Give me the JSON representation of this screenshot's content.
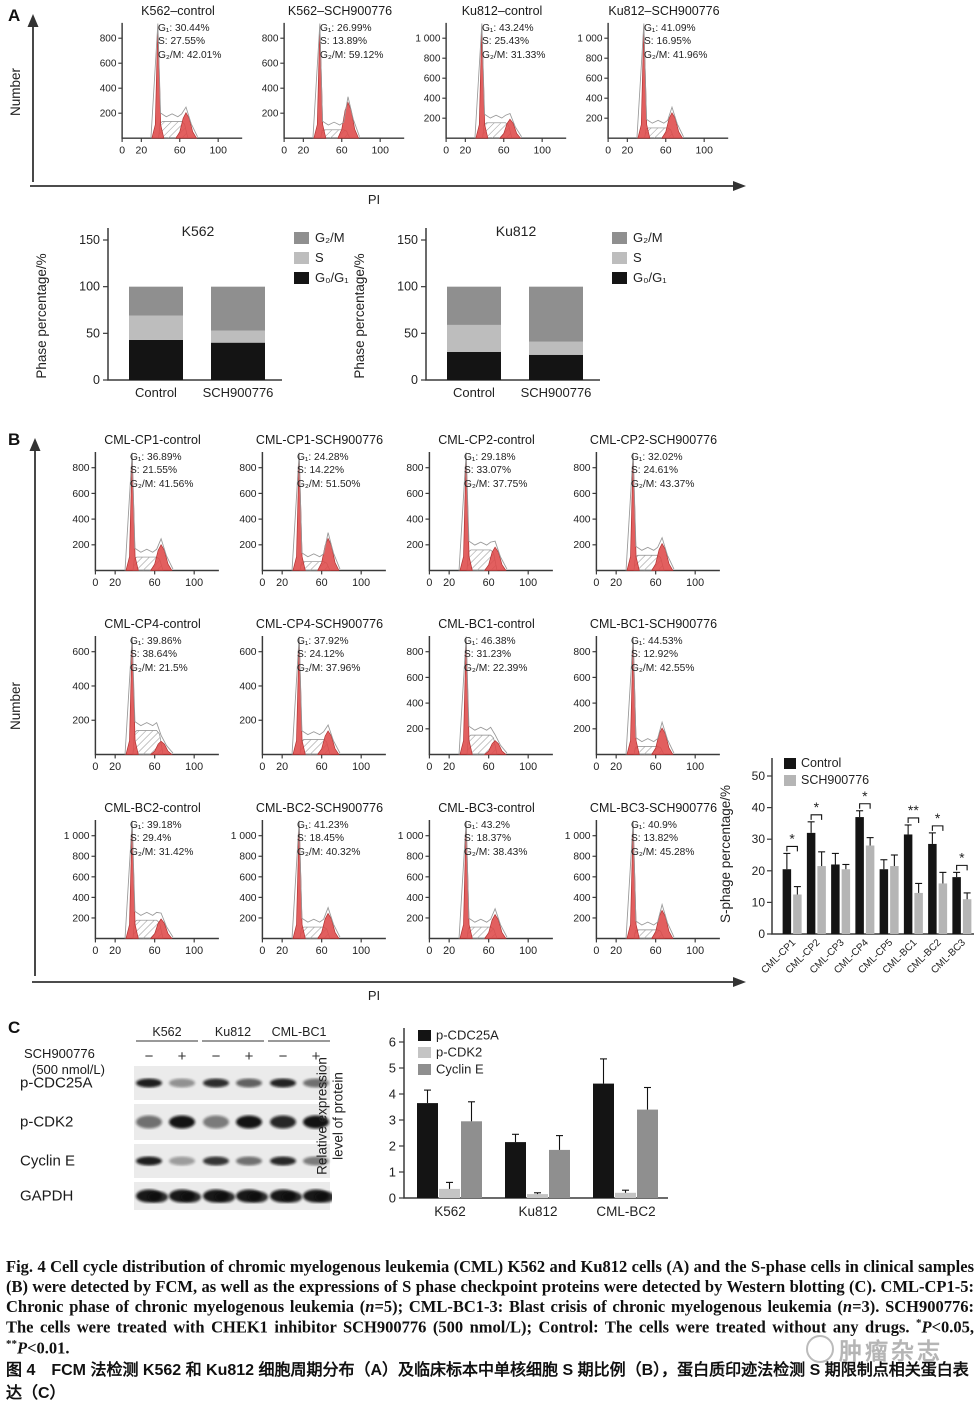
{
  "fcm": {
    "xtick_labels": [
      "0",
      "20",
      "60",
      "100"
    ],
    "xtick_values": [
      0,
      20,
      60,
      100
    ]
  },
  "panelA": {
    "label": "A",
    "ylabel": "Number",
    "xlabel": "PI",
    "histograms": [
      {
        "title": "K562–control",
        "stats": [
          "G₁: 30.44%",
          "S: 27.55%",
          "G₂/M: 42.01%"
        ],
        "v": {
          "g1": 30.44,
          "s": 27.55,
          "g2m": 42.01
        },
        "ymax": 800,
        "yticks": [
          200,
          400,
          600,
          800
        ],
        "ytick_labels": [
          "200",
          "400",
          "600",
          "800"
        ]
      },
      {
        "title": "K562–SCH900776",
        "stats": [
          "G₁: 26.99%",
          "S: 13.89%",
          "G₂/M: 59.12%"
        ],
        "v": {
          "g1": 26.99,
          "s": 13.89,
          "g2m": 59.12
        },
        "ymax": 800,
        "yticks": [
          200,
          400,
          600,
          800
        ],
        "ytick_labels": [
          "200",
          "400",
          "600",
          "800"
        ]
      },
      {
        "title": "Ku812–control",
        "stats": [
          "G₁: 43.24%",
          "S: 25.43%",
          "G₂/M: 31.33%"
        ],
        "v": {
          "g1": 43.24,
          "s": 25.43,
          "g2m": 31.33
        },
        "ymax": 1000,
        "yticks": [
          200,
          400,
          600,
          800,
          1000
        ],
        "ytick_labels": [
          "200",
          "400",
          "600",
          "800",
          "1 000"
        ]
      },
      {
        "title": "Ku812–SCH900776",
        "stats": [
          "G₁: 41.09%",
          "S: 16.95%",
          "G₂/M: 41.96%"
        ],
        "v": {
          "g1": 41.09,
          "s": 16.95,
          "g2m": 41.96
        },
        "ymax": 1000,
        "yticks": [
          200,
          400,
          600,
          800,
          1000
        ],
        "ytick_labels": [
          "200",
          "400",
          "600",
          "800",
          "1 000"
        ]
      }
    ]
  },
  "panelB": {
    "label": "B",
    "ylabel": "Number",
    "xlabel": "PI",
    "rows": [
      [
        {
          "title": "CML-CP1-control",
          "stats": [
            "G₁: 36.89%",
            "S: 21.55%",
            "G₂/M: 41.56%"
          ],
          "v": {
            "g1": 36.89,
            "s": 21.55,
            "g2m": 41.56
          },
          "ymax": 800,
          "yticks": [
            200,
            400,
            600,
            800
          ],
          "ytick_labels": [
            "200",
            "400",
            "600",
            "800"
          ]
        },
        {
          "title": "CML-CP1-SCH900776",
          "stats": [
            "G₁: 24.28%",
            "S: 14.22%",
            "G₂/M: 51.50%"
          ],
          "v": {
            "g1": 24.28,
            "s": 14.22,
            "g2m": 51.5
          },
          "ymax": 800,
          "yticks": [
            200,
            400,
            600,
            800
          ],
          "ytick_labels": [
            "200",
            "400",
            "600",
            "800"
          ]
        },
        {
          "title": "CML-CP2-control",
          "stats": [
            "G₁: 29.18%",
            "S: 33.07%",
            "G₂/M: 37.75%"
          ],
          "v": {
            "g1": 29.18,
            "s": 33.07,
            "g2m": 37.75
          },
          "ymax": 800,
          "yticks": [
            200,
            400,
            600,
            800
          ],
          "ytick_labels": [
            "200",
            "400",
            "600",
            "800"
          ]
        },
        {
          "title": "CML-CP2-SCH900776",
          "stats": [
            "G₁: 32.02%",
            "S: 24.61%",
            "G₂/M: 43.37%"
          ],
          "v": {
            "g1": 32.02,
            "s": 24.61,
            "g2m": 43.37
          },
          "ymax": 800,
          "yticks": [
            200,
            400,
            600,
            800
          ],
          "ytick_labels": [
            "200",
            "400",
            "600",
            "800"
          ]
        }
      ],
      [
        {
          "title": "CML-CP4-control",
          "stats": [
            "G₁: 39.86%",
            "S: 38.64%",
            "G₂/M: 21.5%"
          ],
          "v": {
            "g1": 39.86,
            "s": 38.64,
            "g2m": 21.5
          },
          "ymax": 600,
          "yticks": [
            200,
            400,
            600
          ],
          "ytick_labels": [
            "200",
            "400",
            "600"
          ]
        },
        {
          "title": "CML-CP4-SCH900776",
          "stats": [
            "G₁: 37.92%",
            "S: 24.12%",
            "G₂/M: 37.96%"
          ],
          "v": {
            "g1": 37.92,
            "s": 24.12,
            "g2m": 37.96
          },
          "ymax": 600,
          "yticks": [
            200,
            400,
            600
          ],
          "ytick_labels": [
            "200",
            "400",
            "600"
          ]
        },
        {
          "title": "CML-BC1-control",
          "stats": [
            "G₁: 46.38%",
            "S: 31.23%",
            "G₂/M: 22.39%"
          ],
          "v": {
            "g1": 46.38,
            "s": 31.23,
            "g2m": 22.39
          },
          "ymax": 800,
          "yticks": [
            200,
            400,
            600,
            800
          ],
          "ytick_labels": [
            "200",
            "400",
            "600",
            "800"
          ]
        },
        {
          "title": "CML-BC1-SCH900776",
          "stats": [
            "G₁: 44.53%",
            "S: 12.92%",
            "G₂/M: 42.55%"
          ],
          "v": {
            "g1": 44.53,
            "s": 12.92,
            "g2m": 42.55
          },
          "ymax": 800,
          "yticks": [
            200,
            400,
            600,
            800
          ],
          "ytick_labels": [
            "200",
            "400",
            "600",
            "800"
          ]
        }
      ],
      [
        {
          "title": "CML-BC2-control",
          "stats": [
            "G₁: 39.18%",
            "S: 29.4%",
            "G₂/M: 31.42%"
          ],
          "v": {
            "g1": 39.18,
            "s": 29.4,
            "g2m": 31.42
          },
          "ymax": 1000,
          "yticks": [
            200,
            400,
            600,
            800,
            1000
          ],
          "ytick_labels": [
            "200",
            "400",
            "600",
            "800",
            "1 000"
          ]
        },
        {
          "title": "CML-BC2-SCH900776",
          "stats": [
            "G₁: 41.23%",
            "S: 18.45%",
            "G₂/M: 40.32%"
          ],
          "v": {
            "g1": 41.23,
            "s": 18.45,
            "g2m": 40.32
          },
          "ymax": 1000,
          "yticks": [
            200,
            400,
            600,
            800,
            1000
          ],
          "ytick_labels": [
            "200",
            "400",
            "600",
            "800",
            "1 000"
          ]
        },
        {
          "title": "CML-BC3-control",
          "stats": [
            "G₁: 43.2%",
            "S: 18.37%",
            "G₂/M: 38.43%"
          ],
          "v": {
            "g1": 43.2,
            "s": 18.37,
            "g2m": 38.43
          },
          "ymax": 1000,
          "yticks": [
            200,
            400,
            600,
            800,
            1000
          ],
          "ytick_labels": [
            "200",
            "400",
            "600",
            "800",
            "1 000"
          ]
        },
        {
          "title": "CML-BC3-SCH900776",
          "stats": [
            "G₁: 40.9%",
            "S: 13.82%",
            "G₂/M: 45.28%"
          ],
          "v": {
            "g1": 40.9,
            "s": 13.82,
            "g2m": 45.28
          },
          "ymax": 1000,
          "yticks": [
            200,
            400,
            600,
            800,
            1000
          ],
          "ytick_labels": [
            "200",
            "400",
            "600",
            "800",
            "1 000"
          ]
        }
      ]
    ]
  },
  "panelC": {
    "label": "C",
    "treatment_line1": "SCH900776",
    "treatment_line2": "(500 nmol/L)",
    "cell_lines": [
      "K562",
      "Ku812",
      "CML-BC1"
    ],
    "lane_signs": [
      "−",
      "+",
      "−",
      "+",
      "−",
      "+"
    ],
    "blot_rows": [
      {
        "name": "p-CDC25A",
        "bands": [
          0.92,
          0.4,
          0.85,
          0.62,
          0.9,
          0.55
        ]
      },
      {
        "name": "p-CDK2",
        "bands": [
          0.55,
          0.97,
          0.5,
          0.97,
          0.88,
          0.97
        ]
      },
      {
        "name": "Cyclin E",
        "bands": [
          0.92,
          0.35,
          0.82,
          0.55,
          0.88,
          0.5
        ]
      },
      {
        "name": "GAPDH",
        "bands": [
          0.95,
          0.95,
          0.95,
          0.95,
          0.95,
          0.95
        ]
      }
    ]
  },
  "chart_data": [
    {
      "id": "k562_phase",
      "type": "bar",
      "subtype": "stacked",
      "title": "K562",
      "ylabel": "Phase percentage/%",
      "ylim": [
        0,
        150
      ],
      "yticks": [
        0,
        50,
        100,
        150
      ],
      "categories": [
        "Control",
        "SCH900776"
      ],
      "series": [
        {
          "name": "G₀/G₁",
          "color": "#141414",
          "values": [
            43,
            40
          ]
        },
        {
          "name": "S",
          "color": "#bdbdbd",
          "values": [
            26,
            13
          ]
        },
        {
          "name": "G₂/M",
          "color": "#8f8f8f",
          "values": [
            31,
            47
          ]
        }
      ],
      "legend": [
        {
          "label": "G₂/M",
          "color": "#8f8f8f"
        },
        {
          "label": "S",
          "color": "#bdbdbd"
        },
        {
          "label": "G₀/G₁",
          "color": "#141414"
        }
      ]
    },
    {
      "id": "ku812_phase",
      "type": "bar",
      "subtype": "stacked",
      "title": "Ku812",
      "ylabel": "Phase percentage/%",
      "ylim": [
        0,
        150
      ],
      "yticks": [
        0,
        50,
        100,
        150
      ],
      "categories": [
        "Control",
        "SCH900776"
      ],
      "series": [
        {
          "name": "G₀/G₁",
          "color": "#141414",
          "values": [
            30,
            27
          ]
        },
        {
          "name": "S",
          "color": "#bdbdbd",
          "values": [
            29,
            14
          ]
        },
        {
          "name": "G₂/M",
          "color": "#8f8f8f",
          "values": [
            41,
            59
          ]
        }
      ],
      "legend": [
        {
          "label": "G₂/M",
          "color": "#8f8f8f"
        },
        {
          "label": "S",
          "color": "#bdbdbd"
        },
        {
          "label": "G₀/G₁",
          "color": "#141414"
        }
      ]
    },
    {
      "id": "s_phase",
      "type": "bar",
      "subtype": "grouped",
      "ylabel": "S-phage percentage/%",
      "ylim": [
        0,
        50
      ],
      "yticks": [
        0,
        10,
        20,
        30,
        40,
        50
      ],
      "categories": [
        "CML-CP1",
        "CML-CP2",
        "CML-CP3",
        "CML-CP4",
        "CML-CP5",
        "CML-BC1",
        "CML-BC2",
        "CML-BC3"
      ],
      "series": [
        {
          "name": "Control",
          "color": "#141414",
          "values": [
            20.5,
            32,
            22,
            37,
            20.5,
            31.5,
            28.5,
            18
          ],
          "errors": [
            5,
            3.5,
            3.5,
            2,
            3,
            3,
            3.5,
            1.5
          ]
        },
        {
          "name": "SCH900776",
          "color": "#b5b5b5",
          "values": [
            12.5,
            21.5,
            20.5,
            28,
            21.5,
            13,
            16,
            11
          ],
          "errors": [
            2.5,
            4.5,
            1.5,
            2.5,
            3.5,
            3,
            3.5,
            2
          ]
        }
      ],
      "significance": [
        "*",
        "*",
        "",
        "*",
        "",
        "**",
        "*",
        "*"
      ],
      "legend_position": "top-left"
    },
    {
      "id": "protein_expression",
      "type": "bar",
      "subtype": "grouped",
      "ylabel_lines": [
        "Relative expression",
        "level of protein"
      ],
      "ylim": [
        0,
        6
      ],
      "yticks": [
        0,
        1,
        2,
        3,
        4,
        5,
        6
      ],
      "categories": [
        "K562",
        "Ku812",
        "CML-BC2"
      ],
      "series": [
        {
          "name": "p-CDC25A",
          "color": "#141414",
          "values": [
            3.65,
            2.15,
            4.4
          ],
          "errors": [
            0.5,
            0.3,
            0.95
          ]
        },
        {
          "name": "p-CDK2",
          "color": "#c4c4c4",
          "values": [
            0.35,
            0.15,
            0.2
          ],
          "errors": [
            0.25,
            0.05,
            0.1
          ]
        },
        {
          "name": "Cyclin E",
          "color": "#8f8f8f",
          "values": [
            2.95,
            1.85,
            3.4
          ],
          "errors": [
            0.75,
            0.55,
            0.85
          ]
        }
      ],
      "legend_position": "top-left"
    }
  ],
  "captions": {
    "english_segments": [
      {
        "t": "Fig. 4  Cell cycle distribution of chromic myelogenous leukemia (CML) K562 and Ku812 cells (A) and the S-phase cells in clinical samples (B) were detected by FCM, as well as the expressions of S phase checkpoint proteins were detected by Western blotting (C). CML-CP1-5: Chronic phase of chronic myelogenous leukemia ("
      },
      {
        "t": "n",
        "i": 1
      },
      {
        "t": "=5); CML-BC1-3: Blast crisis of chronic myelogenous leukemia ("
      },
      {
        "t": "n",
        "i": 1
      },
      {
        "t": "=3). SCH900776: The cells were treated with CHEK1 inhibitor SCH900776 (500 nmol/L); Control: The cells were treated without any drugs. "
      },
      {
        "t": "*",
        "sup": 1
      },
      {
        "t": "P",
        "i": 1
      },
      {
        "t": "<0.05, "
      },
      {
        "t": "**",
        "sup": 1
      },
      {
        "t": "P",
        "i": 1
      },
      {
        "t": "<0.01."
      }
    ],
    "chinese": "图 4　FCM 法检测 K562 和 Ku812 细胞周期分布（A）及临床标本中单核细胞 S 期比例（B），蛋白质印迹法检测 S 期限制点相关蛋白表达（C）",
    "watermark": "肿瘤杂志"
  }
}
